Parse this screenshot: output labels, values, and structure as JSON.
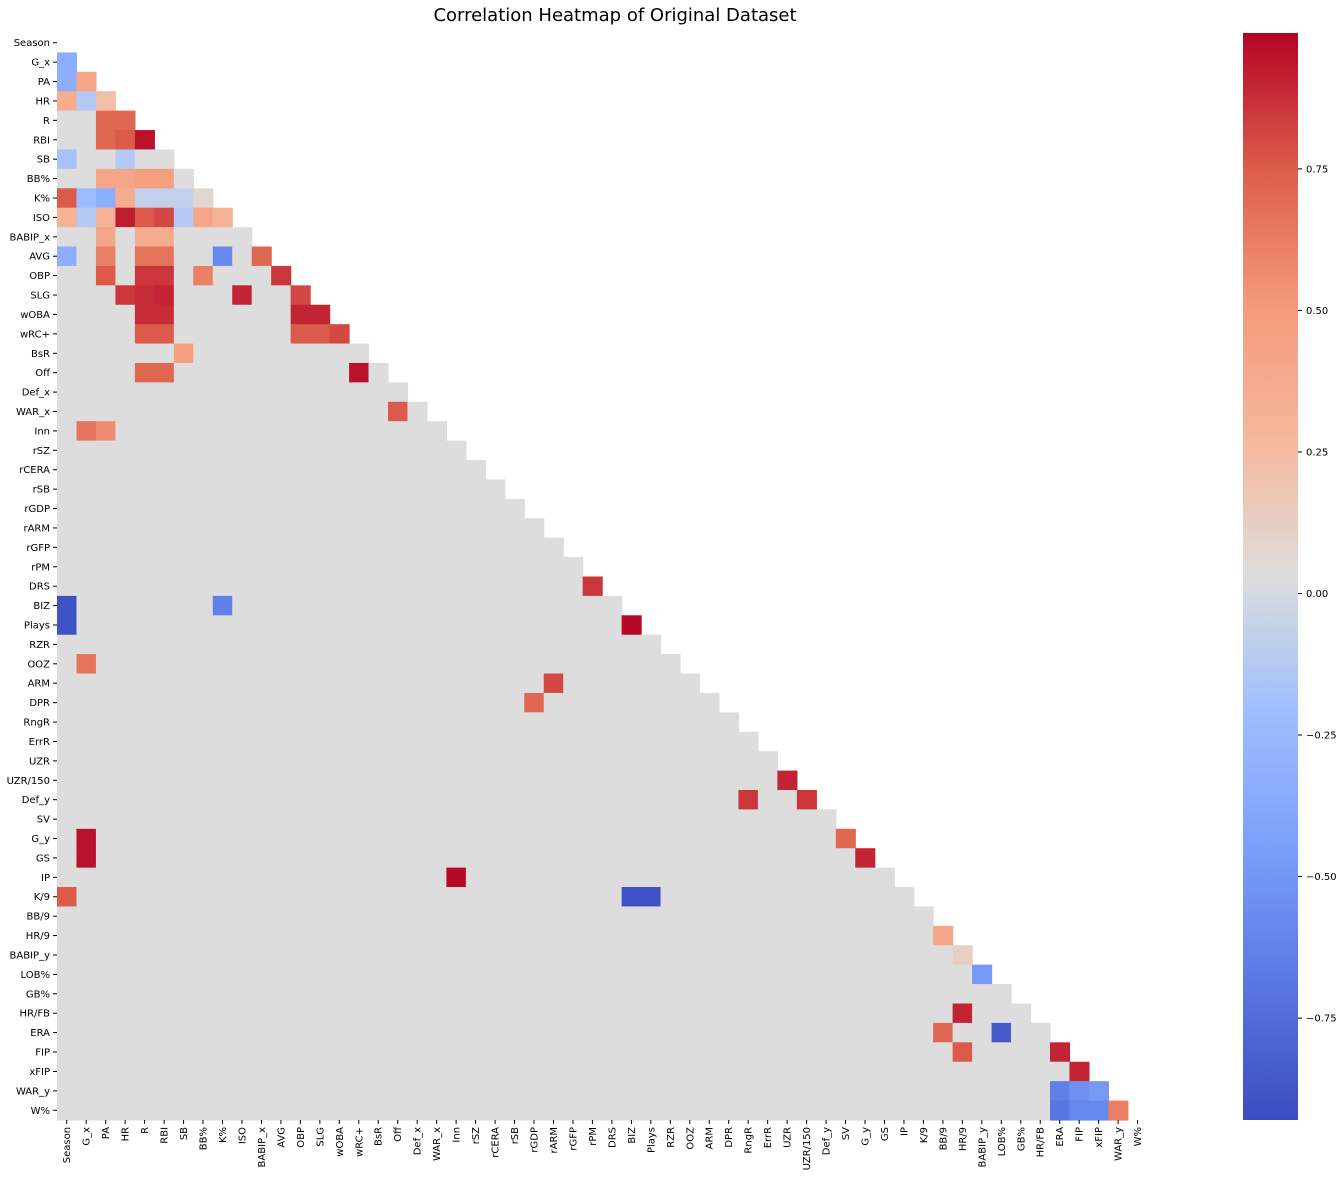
{
  "chart_data": {
    "type": "heatmap",
    "title": "Correlation Heatmap of Original Dataset",
    "xlabel": "",
    "ylabel": "",
    "mask": "upper-triangle (diagonal and above not shown)",
    "colormap": "coolwarm",
    "color_low": "#3b4cc0",
    "color_mid": "#dddddd",
    "color_high": "#b40426",
    "vmin": -0.93,
    "vmax": 0.99,
    "colorbar_ticks": [
      -0.75,
      -0.5,
      -0.25,
      0.0,
      0.25,
      0.5,
      0.75
    ],
    "colorbar_tick_labels": [
      "−0.75",
      "−0.50",
      "−0.25",
      "0.00",
      "0.25",
      "0.50",
      "0.75"
    ],
    "labels": [
      "Season",
      "G_x",
      "PA",
      "HR",
      "R",
      "RBI",
      "SB",
      "BB%",
      "K%",
      "ISO",
      "BABIP_x",
      "AVG",
      "OBP",
      "SLG",
      "wOBA",
      "wRC+",
      "BsR",
      "Off",
      "Def_x",
      "WAR_x",
      "Inn",
      "rSZ",
      "rCERA",
      "rSB",
      "rGDP",
      "rARM",
      "rGFP",
      "rPM",
      "DRS",
      "BIZ",
      "Plays",
      "RZR",
      "OOZ",
      "ARM",
      "DPR",
      "RngR",
      "ErrR",
      "UZR",
      "UZR/150",
      "Def_y",
      "SV",
      "G_y",
      "GS",
      "IP",
      "K/9",
      "BB/9",
      "HR/9",
      "BABIP_y",
      "LOB%",
      "GB%",
      "HR/FB",
      "ERA",
      "FIP",
      "xFIP",
      "WAR_y",
      "W%"
    ],
    "known_values": [
      {
        "row": "G_x",
        "col": "Season",
        "value": -0.35
      },
      {
        "row": "PA",
        "col": "Season",
        "value": -0.35
      },
      {
        "row": "PA",
        "col": "G_x",
        "value": 0.4
      },
      {
        "row": "HR",
        "col": "Season",
        "value": 0.35
      },
      {
        "row": "HR",
        "col": "G_x",
        "value": -0.15
      },
      {
        "row": "HR",
        "col": "PA",
        "value": 0.2
      },
      {
        "row": "R",
        "col": "PA",
        "value": 0.7
      },
      {
        "row": "R",
        "col": "HR",
        "value": 0.7
      },
      {
        "row": "RBI",
        "col": "PA",
        "value": 0.7
      },
      {
        "row": "RBI",
        "col": "HR",
        "value": 0.75
      },
      {
        "row": "RBI",
        "col": "R",
        "value": 0.95
      },
      {
        "row": "SB",
        "col": "Season",
        "value": -0.2
      },
      {
        "row": "SB",
        "col": "HR",
        "value": -0.15
      },
      {
        "row": "BB%",
        "col": "PA",
        "value": 0.4
      },
      {
        "row": "BB%",
        "col": "HR",
        "value": 0.4
      },
      {
        "row": "BB%",
        "col": "R",
        "value": 0.45
      },
      {
        "row": "BB%",
        "col": "RBI",
        "value": 0.45
      },
      {
        "row": "K%",
        "col": "Season",
        "value": 0.75
      },
      {
        "row": "K%",
        "col": "G_x",
        "value": -0.25
      },
      {
        "row": "K%",
        "col": "PA",
        "value": -0.35
      },
      {
        "row": "K%",
        "col": "HR",
        "value": 0.35
      },
      {
        "row": "K%",
        "col": "R",
        "value": -0.1
      },
      {
        "row": "K%",
        "col": "RBI",
        "value": -0.1
      },
      {
        "row": "K%",
        "col": "SB",
        "value": -0.1
      },
      {
        "row": "K%",
        "col": "BB%",
        "value": 0.05
      },
      {
        "row": "ISO",
        "col": "Season",
        "value": 0.3
      },
      {
        "row": "ISO",
        "col": "G_x",
        "value": -0.15
      },
      {
        "row": "ISO",
        "col": "PA",
        "value": 0.3
      },
      {
        "row": "ISO",
        "col": "HR",
        "value": 0.92
      },
      {
        "row": "ISO",
        "col": "R",
        "value": 0.75
      },
      {
        "row": "ISO",
        "col": "RBI",
        "value": 0.8
      },
      {
        "row": "ISO",
        "col": "SB",
        "value": -0.15
      },
      {
        "row": "ISO",
        "col": "BB%",
        "value": 0.4
      },
      {
        "row": "ISO",
        "col": "K%",
        "value": 0.3
      },
      {
        "row": "BABIP_x",
        "col": "PA",
        "value": 0.4
      },
      {
        "row": "BABIP_x",
        "col": "R",
        "value": 0.35
      },
      {
        "row": "BABIP_x",
        "col": "RBI",
        "value": 0.35
      },
      {
        "row": "AVG",
        "col": "Season",
        "value": -0.35
      },
      {
        "row": "AVG",
        "col": "PA",
        "value": 0.6
      },
      {
        "row": "AVG",
        "col": "R",
        "value": 0.65
      },
      {
        "row": "AVG",
        "col": "RBI",
        "value": 0.65
      },
      {
        "row": "AVG",
        "col": "K%",
        "value": -0.6
      },
      {
        "row": "AVG",
        "col": "BABIP_x",
        "value": 0.7
      },
      {
        "row": "OBP",
        "col": "PA",
        "value": 0.75
      },
      {
        "row": "OBP",
        "col": "R",
        "value": 0.85
      },
      {
        "row": "OBP",
        "col": "RBI",
        "value": 0.85
      },
      {
        "row": "OBP",
        "col": "BB%",
        "value": 0.6
      },
      {
        "row": "OBP",
        "col": "AVG",
        "value": 0.85
      },
      {
        "row": "SLG",
        "col": "HR",
        "value": 0.85
      },
      {
        "row": "SLG",
        "col": "R",
        "value": 0.88
      },
      {
        "row": "SLG",
        "col": "RBI",
        "value": 0.9
      },
      {
        "row": "SLG",
        "col": "ISO",
        "value": 0.9
      },
      {
        "row": "SLG",
        "col": "OBP",
        "value": 0.8
      },
      {
        "row": "wOBA",
        "col": "R",
        "value": 0.88
      },
      {
        "row": "wOBA",
        "col": "RBI",
        "value": 0.88
      },
      {
        "row": "wOBA",
        "col": "OBP",
        "value": 0.9
      },
      {
        "row": "wOBA",
        "col": "SLG",
        "value": 0.9
      },
      {
        "row": "wRC+",
        "col": "R",
        "value": 0.75
      },
      {
        "row": "wRC+",
        "col": "RBI",
        "value": 0.75
      },
      {
        "row": "wRC+",
        "col": "OBP",
        "value": 0.75
      },
      {
        "row": "wRC+",
        "col": "SLG",
        "value": 0.75
      },
      {
        "row": "wRC+",
        "col": "wOBA",
        "value": 0.8
      },
      {
        "row": "BsR",
        "col": "SB",
        "value": 0.45
      },
      {
        "row": "Off",
        "col": "R",
        "value": 0.7
      },
      {
        "row": "Off",
        "col": "RBI",
        "value": 0.7
      },
      {
        "row": "Off",
        "col": "wRC+",
        "value": 0.95
      },
      {
        "row": "WAR_x",
        "col": "Off",
        "value": 0.75
      },
      {
        "row": "Inn",
        "col": "G_x",
        "value": 0.65
      },
      {
        "row": "Inn",
        "col": "PA",
        "value": 0.55
      },
      {
        "row": "DRS",
        "col": "rPM",
        "value": 0.85
      },
      {
        "row": "BIZ",
        "col": "Season",
        "value": -0.9
      },
      {
        "row": "BIZ",
        "col": "K%",
        "value": -0.65
      },
      {
        "row": "Plays",
        "col": "Season",
        "value": -0.9
      },
      {
        "row": "Plays",
        "col": "BIZ",
        "value": 0.98
      },
      {
        "row": "OOZ",
        "col": "G_x",
        "value": 0.65
      },
      {
        "row": "ARM",
        "col": "rARM",
        "value": 0.8
      },
      {
        "row": "DPR",
        "col": "rGDP",
        "value": 0.7
      },
      {
        "row": "UZR/150",
        "col": "UZR",
        "value": 0.9
      },
      {
        "row": "Def_y",
        "col": "RngR",
        "value": 0.85
      },
      {
        "row": "Def_y",
        "col": "UZR/150",
        "value": 0.85
      },
      {
        "row": "G_y",
        "col": "G_x",
        "value": 0.95
      },
      {
        "row": "G_y",
        "col": "SV",
        "value": 0.7
      },
      {
        "row": "GS",
        "col": "G_x",
        "value": 0.95
      },
      {
        "row": "GS",
        "col": "G_y",
        "value": 0.9
      },
      {
        "row": "IP",
        "col": "Inn",
        "value": 0.98
      },
      {
        "row": "K/9",
        "col": "Season",
        "value": 0.75
      },
      {
        "row": "K/9",
        "col": "BIZ",
        "value": -0.9
      },
      {
        "row": "K/9",
        "col": "Plays",
        "value": -0.9
      },
      {
        "row": "HR/9",
        "col": "BB/9",
        "value": 0.4
      },
      {
        "row": "BABIP_y",
        "col": "HR/9",
        "value": 0.1
      },
      {
        "row": "LOB%",
        "col": "BABIP_y",
        "value": -0.5
      },
      {
        "row": "HR/FB",
        "col": "HR/9",
        "value": 0.9
      },
      {
        "row": "ERA",
        "col": "LOB%",
        "value": -0.85
      },
      {
        "row": "ERA",
        "col": "BB/9",
        "value": 0.7
      },
      {
        "row": "FIP",
        "col": "ERA",
        "value": 0.9
      },
      {
        "row": "FIP",
        "col": "HR/9",
        "value": 0.75
      },
      {
        "row": "xFIP",
        "col": "FIP",
        "value": 0.9
      },
      {
        "row": "WAR_y",
        "col": "ERA",
        "value": -0.65
      },
      {
        "row": "WAR_y",
        "col": "FIP",
        "value": -0.55
      },
      {
        "row": "WAR_y",
        "col": "xFIP",
        "value": -0.5
      },
      {
        "row": "W%",
        "col": "ERA",
        "value": -0.7
      },
      {
        "row": "W%",
        "col": "FIP",
        "value": -0.6
      },
      {
        "row": "W%",
        "col": "xFIP",
        "value": -0.6
      },
      {
        "row": "W%",
        "col": "WAR_y",
        "value": 0.6
      }
    ],
    "default_value": 0.0
  }
}
